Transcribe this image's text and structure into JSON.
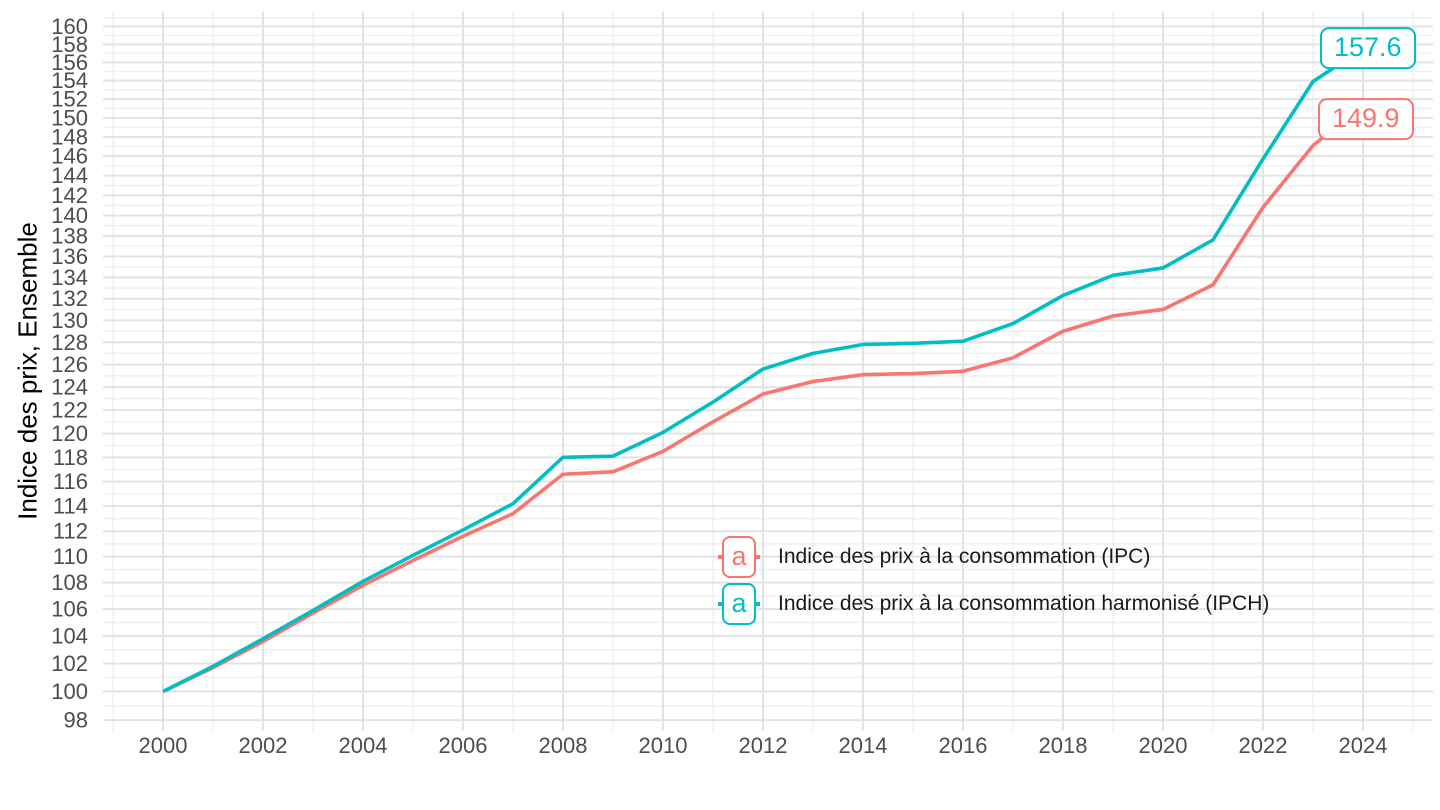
{
  "chart_data": {
    "type": "line",
    "title": "",
    "xlabel": "",
    "ylabel": "Indice des prix, Ensemble",
    "y_scale": "log",
    "xlim": [
      1998.8,
      2025.4
    ],
    "ylim": [
      97.25,
      161.65
    ],
    "grid": {
      "major": true,
      "minor": true
    },
    "grid_major_color": "#E3E3E3",
    "grid_minor_color": "#EFEFEF",
    "axis_text_color": "#4D4D4D",
    "x_major_ticks": [
      2000,
      2002,
      2004,
      2006,
      2008,
      2010,
      2012,
      2014,
      2016,
      2018,
      2020,
      2022,
      2024
    ],
    "x_minor_ticks": [
      1999,
      2001,
      2003,
      2005,
      2007,
      2009,
      2011,
      2013,
      2015,
      2017,
      2019,
      2021,
      2023,
      2025
    ],
    "y_major_ticks": [
      98,
      100,
      102,
      104,
      106,
      108,
      110,
      112,
      114,
      116,
      118,
      120,
      122,
      124,
      126,
      128,
      130,
      132,
      134,
      136,
      138,
      140,
      142,
      144,
      146,
      148,
      150,
      152,
      154,
      156,
      158,
      160
    ],
    "y_minor_ticks": [
      99,
      101,
      103,
      105,
      107,
      109,
      111,
      113,
      115,
      117,
      119,
      121,
      123,
      125,
      127,
      129,
      131,
      133,
      135,
      137,
      139,
      141,
      143,
      145,
      147,
      149,
      151,
      153,
      155,
      157,
      159,
      161
    ],
    "years": [
      2000,
      2001,
      2002,
      2003,
      2004,
      2005,
      2006,
      2007,
      2008,
      2009,
      2010,
      2011,
      2012,
      2013,
      2014,
      2015,
      2016,
      2017,
      2018,
      2019,
      2020,
      2021,
      2022,
      2023
    ],
    "legend": {
      "position": "inside-plot",
      "key_glyph": "a"
    },
    "series": [
      {
        "id": "ipc",
        "name": "Indice des prix à la consommation (IPC)",
        "color": "#F8766D",
        "values": [
          100.0,
          101.7,
          103.6,
          105.7,
          107.8,
          109.7,
          111.6,
          113.4,
          116.6,
          116.8,
          118.5,
          121.0,
          123.4,
          124.5,
          125.1,
          125.2,
          125.4,
          126.6,
          129.0,
          130.4,
          131.0,
          133.3,
          140.8,
          147.1
        ],
        "end_label": {
          "text": "149.9",
          "value": 149.9,
          "box_x": 2023.1,
          "leader_end": {
            "x": 2023.36,
            "value": 148.6
          }
        }
      },
      {
        "id": "ipch",
        "name": "Indice des prix à la consommation harmonisé (IPCH)",
        "color": "#00BFC4",
        "values": [
          100.0,
          101.8,
          103.8,
          105.9,
          108.1,
          110.1,
          112.1,
          114.2,
          118.0,
          118.1,
          120.1,
          122.7,
          125.6,
          127.0,
          127.8,
          127.9,
          128.1,
          129.7,
          132.3,
          134.2,
          134.9,
          137.6,
          145.7,
          153.9
        ],
        "end_label": {
          "text": "157.6",
          "value": 157.6,
          "box_x": 2023.14,
          "leader_end": {
            "x": 2023.5,
            "value": 155.7
          }
        }
      }
    ]
  }
}
